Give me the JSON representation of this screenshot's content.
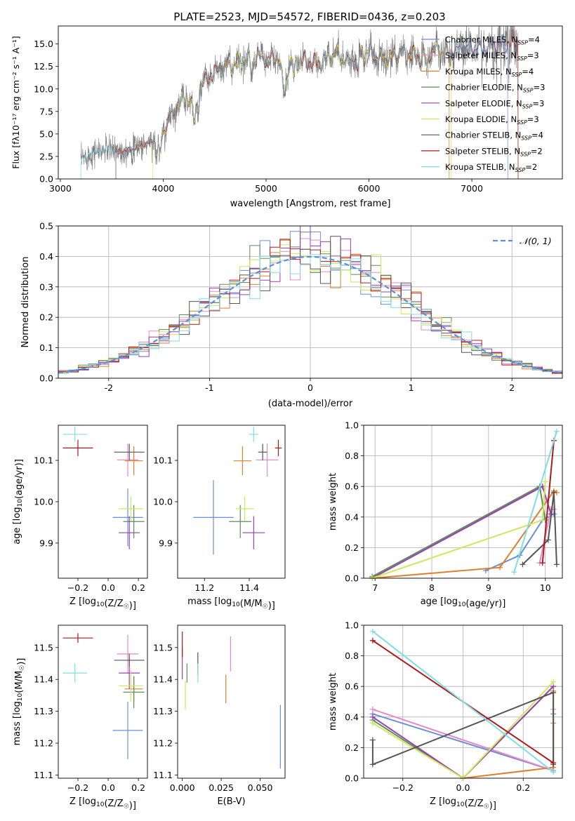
{
  "suptitle": "PLATE=2523, MJD=54572, FIBERID=0436, z=0.203",
  "colors": {
    "Chabrier MILES": "#6a8fd6",
    "Salpeter MILES": "#e58ac4",
    "Kroupa MILES": "#e07f2c",
    "Chabrier ELODIE": "#5a8f5a",
    "Salpeter ELODIE": "#9b3fb5",
    "Kroupa ELODIE": "#cde85a",
    "Chabrier STELIB": "#555555",
    "Salpeter STELIB": "#b0191c",
    "Kroupa STELIB": "#7fdde6",
    "normal_curve": "#5b8fd6",
    "data_gray": "#777777"
  },
  "chart_data": [
    {
      "id": "spectrum",
      "type": "line",
      "title": "",
      "xlabel": "wavelength [Angstrom, rest frame]",
      "ylabel": "Flux [fλ10⁻¹⁷ erg cm⁻² s⁻¹ A⁻¹]",
      "xlim": [
        2980,
        7880
      ],
      "ylim": [
        0,
        17
      ],
      "xticks": [
        3000,
        4000,
        5000,
        6000,
        7000
      ],
      "yticks": [
        0.0,
        2.5,
        5.0,
        7.5,
        10.0,
        12.5,
        15.0
      ],
      "legend_position": "right",
      "legend": [
        "Chabrier MILES, NSSP=4",
        "Salpeter MILES, NSSP=3",
        "Kroupa MILES, NSSP=4",
        "Chabrier ELODIE, NSSP=3",
        "Salpeter ELODIE, NSSP=3",
        "Kroupa ELODIE, NSSP=3",
        "Chabrier STELIB, NSSP=4",
        "Salpeter STELIB, NSSP=2",
        "Kroupa STELIB, NSSP=2"
      ],
      "continuum": {
        "x": [
          3200,
          3300,
          3400,
          3500,
          3600,
          3700,
          3800,
          3900,
          4000,
          4100,
          4200,
          4300,
          4400,
          4500,
          4600,
          4700,
          4800,
          4900,
          5000,
          5100,
          5200,
          5300,
          5400,
          5500,
          5600,
          5700,
          5800,
          5900,
          6000,
          6100,
          6200,
          6300,
          6400,
          6500,
          6600,
          6700,
          6800,
          6900,
          7000,
          7100,
          7200,
          7300,
          7400
        ],
        "y": [
          2.0,
          2.9,
          3.1,
          3.3,
          3.1,
          3.3,
          3.8,
          4.2,
          7.2,
          8.2,
          8.8,
          9.0,
          10.8,
          11.8,
          12.4,
          12.8,
          13.4,
          13.6,
          13.2,
          13.6,
          12.6,
          13.2,
          13.0,
          12.9,
          13.4,
          13.8,
          13.0,
          14.2,
          14.0,
          13.6,
          13.4,
          13.9,
          13.8,
          13.5,
          14.2,
          14.3,
          13.9,
          14.5,
          14.7,
          14.4,
          14.9,
          15.0,
          15.3
        ]
      }
    },
    {
      "id": "residuals",
      "type": "line",
      "title": "",
      "xlabel": "(data-model)/error",
      "ylabel": "Normed distribution",
      "xlim": [
        -2.5,
        2.5
      ],
      "ylim": [
        0,
        0.5
      ],
      "xticks": [
        -2,
        -1,
        0,
        1,
        2
      ],
      "yticks": [
        0.0,
        0.1,
        0.2,
        0.3,
        0.4,
        0.5
      ],
      "grid": true,
      "legend": "𝒩(0, 1)",
      "legend_position": "top-right",
      "bins": 50
    },
    {
      "id": "age_vs_Z",
      "type": "scatter",
      "xlabel": "Z [log10(Z/Z☉)]",
      "ylabel": "age  [log10(age/yr)]",
      "xlim": [
        -0.33,
        0.26
      ],
      "ylim": [
        9.815,
        10.185
      ],
      "xticks": [
        -0.2,
        0.0,
        0.2
      ],
      "yticks": [
        9.9,
        10.0,
        10.1
      ],
      "xticklabels": [
        "−0.2",
        "0.0",
        "0.2"
      ],
      "yticklabels": [
        "9.9",
        "10.0",
        "10.1"
      ],
      "points": [
        {
          "model": "Chabrier MILES",
          "x": 0.13,
          "xerr": 0.1,
          "y": 9.962,
          "yerr": 0.07
        },
        {
          "model": "Salpeter MILES",
          "x": 0.13,
          "xerr": 0.07,
          "y": 10.101,
          "yerr": 0.04
        },
        {
          "model": "Kroupa MILES",
          "x": 0.17,
          "xerr": 0.06,
          "y": 10.099,
          "yerr": 0.035
        },
        {
          "model": "Chabrier ELODIE",
          "x": 0.17,
          "xerr": 0.07,
          "y": 9.952,
          "yerr": 0.04
        },
        {
          "model": "Salpeter ELODIE",
          "x": 0.14,
          "xerr": 0.07,
          "y": 9.925,
          "yerr": 0.04
        },
        {
          "model": "Kroupa ELODIE",
          "x": 0.15,
          "xerr": 0.08,
          "y": 9.983,
          "yerr": 0.03
        },
        {
          "model": "Chabrier STELIB",
          "x": 0.14,
          "xerr": 0.1,
          "y": 10.12,
          "yerr": 0.02
        },
        {
          "model": "Salpeter STELIB",
          "x": -0.2,
          "xerr": 0.1,
          "y": 10.13,
          "yerr": 0.02
        },
        {
          "model": "Kroupa STELIB",
          "x": -0.22,
          "xerr": 0.08,
          "y": 10.163,
          "yerr": 0.018
        }
      ]
    },
    {
      "id": "age_vs_mass",
      "type": "scatter",
      "xlabel": "mass [log10(M/M☉)]",
      "ylabel": "",
      "xlim": [
        11.08,
        11.56
      ],
      "ylim": [
        9.815,
        10.185
      ],
      "xticks": [
        11.2,
        11.4
      ],
      "yticks": [
        9.9,
        10.0,
        10.1
      ],
      "xticklabels": [
        "11.2",
        "11.4"
      ],
      "yticklabels": [
        "9.9",
        "10.0",
        "10.1"
      ],
      "points": [
        {
          "model": "Chabrier MILES",
          "x": 11.24,
          "xerr": 0.09,
          "y": 9.962,
          "yerr": 0.09
        },
        {
          "model": "Salpeter MILES",
          "x": 11.48,
          "xerr": 0.05,
          "y": 10.101,
          "yerr": 0.04
        },
        {
          "model": "Kroupa MILES",
          "x": 11.37,
          "xerr": 0.04,
          "y": 10.099,
          "yerr": 0.035
        },
        {
          "model": "Chabrier ELODIE",
          "x": 11.36,
          "xerr": 0.05,
          "y": 9.952,
          "yerr": 0.04
        },
        {
          "model": "Salpeter ELODIE",
          "x": 11.42,
          "xerr": 0.05,
          "y": 9.925,
          "yerr": 0.04
        },
        {
          "model": "Kroupa ELODIE",
          "x": 11.38,
          "xerr": 0.04,
          "y": 9.983,
          "yerr": 0.03
        },
        {
          "model": "Chabrier STELIB",
          "x": 11.46,
          "xerr": 0.02,
          "y": 10.12,
          "yerr": 0.02
        },
        {
          "model": "Salpeter STELIB",
          "x": 11.53,
          "xerr": 0.015,
          "y": 10.13,
          "yerr": 0.02
        },
        {
          "model": "Kroupa STELIB",
          "x": 11.42,
          "xerr": 0.02,
          "y": 10.163,
          "yerr": 0.018
        }
      ]
    },
    {
      "id": "weight_vs_age",
      "type": "line",
      "xlabel": "age  [log10(age/yr)]",
      "ylabel": "mass weight",
      "xlim": [
        6.8,
        10.3
      ],
      "ylim": [
        0,
        1.0
      ],
      "xticks": [
        7,
        8,
        9,
        10
      ],
      "yticks": [
        0.0,
        0.2,
        0.4,
        0.6,
        0.8,
        1.0
      ],
      "grid": true,
      "series": [
        {
          "model": "Chabrier MILES",
          "x": [
            8.95,
            9.55,
            9.95,
            10.15
          ],
          "y": [
            0.05,
            0.15,
            0.38,
            0.42
          ]
        },
        {
          "model": "Salpeter MILES",
          "x": [
            9.9,
            10.1,
            10.15
          ],
          "y": [
            0.1,
            0.45,
            0.45
          ]
        },
        {
          "model": "Kroupa MILES",
          "x": [
            6.95,
            9.2,
            10.15,
            10.2
          ],
          "y": [
            0.0,
            0.07,
            0.57,
            0.56
          ]
        },
        {
          "model": "Chabrier ELODIE",
          "x": [
            6.95,
            9.9,
            10.0
          ],
          "y": [
            0.01,
            0.6,
            0.38
          ]
        },
        {
          "model": "Salpeter ELODIE",
          "x": [
            6.95,
            9.95,
            10.1
          ],
          "y": [
            0.0,
            0.6,
            0.42
          ]
        },
        {
          "model": "Kroupa ELODIE",
          "x": [
            6.95,
            9.95,
            10.0
          ],
          "y": [
            0.0,
            0.38,
            0.63
          ]
        },
        {
          "model": "Chabrier STELIB",
          "x": [
            9.6,
            10.05,
            10.15,
            10.2
          ],
          "y": [
            0.09,
            0.25,
            0.56,
            0.09
          ]
        },
        {
          "model": "Salpeter STELIB",
          "x": [
            9.95,
            10.15
          ],
          "y": [
            0.1,
            0.9
          ]
        },
        {
          "model": "Kroupa STELIB",
          "x": [
            9.45,
            10.2
          ],
          "y": [
            0.04,
            0.96
          ]
        }
      ]
    },
    {
      "id": "mass_vs_Z",
      "type": "scatter",
      "xlabel": "Z [log10(Z/Z☉)]",
      "ylabel": "mass [log10(M/M☉)]",
      "xlim": [
        -0.33,
        0.26
      ],
      "ylim": [
        11.09,
        11.57
      ],
      "xticks": [
        -0.2,
        0.0,
        0.2
      ],
      "yticks": [
        11.1,
        11.2,
        11.3,
        11.4,
        11.5
      ],
      "xticklabels": [
        "−0.2",
        "0.0",
        "0.2"
      ],
      "yticklabels": [
        "11.1",
        "11.2",
        "11.3",
        "11.4",
        "11.5"
      ],
      "points": [
        {
          "model": "Chabrier MILES",
          "x": 0.13,
          "xerr": 0.1,
          "y": 11.24,
          "yerr": 0.09
        },
        {
          "model": "Salpeter MILES",
          "x": 0.13,
          "xerr": 0.07,
          "y": 11.48,
          "yerr": 0.06
        },
        {
          "model": "Kroupa MILES",
          "x": 0.17,
          "xerr": 0.06,
          "y": 11.37,
          "yerr": 0.04
        },
        {
          "model": "Chabrier ELODIE",
          "x": 0.17,
          "xerr": 0.07,
          "y": 11.36,
          "yerr": 0.05
        },
        {
          "model": "Salpeter ELODIE",
          "x": 0.14,
          "xerr": 0.07,
          "y": 11.42,
          "yerr": 0.05
        },
        {
          "model": "Kroupa ELODIE",
          "x": 0.15,
          "xerr": 0.08,
          "y": 11.38,
          "yerr": 0.05
        },
        {
          "model": "Chabrier STELIB",
          "x": 0.14,
          "xerr": 0.1,
          "y": 11.46,
          "yerr": 0.02
        },
        {
          "model": "Salpeter STELIB",
          "x": -0.2,
          "xerr": 0.1,
          "y": 11.53,
          "yerr": 0.015
        },
        {
          "model": "Kroupa STELIB",
          "x": -0.22,
          "xerr": 0.08,
          "y": 11.42,
          "yerr": 0.03
        }
      ]
    },
    {
      "id": "mass_vs_ebv",
      "type": "scatter",
      "xlabel": "E(B-V)",
      "ylabel": "",
      "xlim": [
        -0.003,
        0.066
      ],
      "ylim": [
        11.09,
        11.57
      ],
      "xticks": [
        0.0,
        0.025,
        0.05
      ],
      "yticks": [
        11.1,
        11.2,
        11.3,
        11.4,
        11.5
      ],
      "xticklabels": [
        "0.000",
        "0.025",
        "0.050"
      ],
      "yticklabels": [
        "11.1",
        "11.2",
        "11.3",
        "11.4",
        "11.5"
      ],
      "points": [
        {
          "model": "Chabrier MILES",
          "x": 0.063,
          "y": 11.22,
          "yerr": 0.1
        },
        {
          "model": "Salpeter MILES",
          "x": 0.031,
          "y": 11.48,
          "yerr": 0.055
        },
        {
          "model": "Kroupa MILES",
          "x": 0.028,
          "y": 11.37,
          "yerr": 0.045
        },
        {
          "model": "Chabrier ELODIE",
          "x": 0.003,
          "y": 11.42,
          "yerr": 0.03
        },
        {
          "model": "Salpeter ELODIE",
          "x": 0.0,
          "y": 11.45,
          "yerr": 0.05
        },
        {
          "model": "Kroupa ELODIE",
          "x": 0.002,
          "y": 11.35,
          "yerr": 0.045
        },
        {
          "model": "Chabrier STELIB",
          "x": 0.01,
          "y": 11.45,
          "yerr": 0.035
        },
        {
          "model": "Salpeter STELIB",
          "x": 0.0,
          "y": 11.51,
          "yerr": 0.04
        },
        {
          "model": "Kroupa STELIB",
          "x": 0.01,
          "y": 11.42,
          "yerr": 0.03
        }
      ]
    },
    {
      "id": "weight_vs_Z",
      "type": "line",
      "xlabel": "Z [log10(Z/Z☉)]",
      "ylabel": "mass weight",
      "xlim": [
        -0.33,
        0.33
      ],
      "ylim": [
        0,
        1.0
      ],
      "xticks": [
        -0.2,
        0.0,
        0.2
      ],
      "yticks": [
        0.0,
        0.2,
        0.4,
        0.6,
        0.8,
        1.0
      ],
      "xticklabels": [
        "−0.2",
        "0.0",
        "0.2"
      ],
      "grid": true,
      "series": [
        {
          "model": "Chabrier MILES",
          "x": [
            -0.3,
            0.3,
            0.3
          ],
          "y": [
            0.42,
            0.05,
            0.42
          ]
        },
        {
          "model": "Salpeter MILES",
          "x": [
            -0.3,
            0.3,
            0.3
          ],
          "y": [
            0.45,
            0.05,
            0.45
          ]
        },
        {
          "model": "Kroupa MILES",
          "x": [
            0.0,
            0.3,
            0.3,
            0.3
          ],
          "y": [
            0.0,
            0.07,
            0.57,
            0.36
          ]
        },
        {
          "model": "Chabrier ELODIE",
          "x": [
            -0.3,
            0.0,
            0.3
          ],
          "y": [
            0.38,
            0.0,
            0.6
          ]
        },
        {
          "model": "Salpeter ELODIE",
          "x": [
            -0.3,
            0.0,
            0.3
          ],
          "y": [
            0.4,
            0.0,
            0.6
          ]
        },
        {
          "model": "Kroupa ELODIE",
          "x": [
            -0.3,
            0.0,
            0.3
          ],
          "y": [
            0.36,
            0.0,
            0.63
          ]
        },
        {
          "model": "Chabrier STELIB",
          "x": [
            -0.3,
            -0.3,
            0.3,
            0.3
          ],
          "y": [
            0.25,
            0.09,
            0.56,
            0.09
          ]
        },
        {
          "model": "Salpeter STELIB",
          "x": [
            -0.3,
            0.3
          ],
          "y": [
            0.9,
            0.1
          ]
        },
        {
          "model": "Kroupa STELIB",
          "x": [
            -0.3,
            0.3
          ],
          "y": [
            0.96,
            0.04
          ]
        }
      ]
    }
  ]
}
